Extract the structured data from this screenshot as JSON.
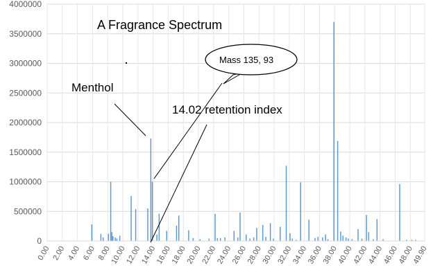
{
  "chart_data": {
    "type": "bar",
    "title": "A Fragrance Spectrum",
    "xlabel": "",
    "ylabel": "",
    "ylim": [
      0,
      4000000
    ],
    "xlim": [
      0,
      49.9
    ],
    "y_ticks": [
      "0",
      "500000",
      "1000000",
      "1500000",
      "2000000",
      "2500000",
      "3000000",
      "3500000",
      "4000000"
    ],
    "x_ticks": [
      "0.00",
      "2.00",
      "4.00",
      "6.00",
      "8.00",
      "10.00",
      "12.00",
      "14.00",
      "16.00",
      "18.00",
      "20.00",
      "22.00",
      "24.00",
      "26.00",
      "28.00",
      "30.00",
      "32.00",
      "34.00",
      "36.00",
      "38.00",
      "40.00",
      "42.00",
      "44.00",
      "46.00",
      "48.00",
      "49.90"
    ],
    "grid": true,
    "legend": "none",
    "color": "#5b9bd5",
    "x": [
      5.9,
      7.1,
      7.4,
      8.1,
      8.4,
      8.55,
      8.7,
      9.0,
      9.2,
      9.6,
      11.1,
      11.7,
      13.3,
      13.7,
      13.9,
      14.5,
      14.8,
      15.8,
      17.1,
      17.4,
      18.7,
      19.3,
      20.2,
      21.4,
      22.2,
      22.5,
      22.9,
      23.5,
      24.7,
      25.2,
      25.5,
      26.3,
      26.8,
      27.3,
      27.7,
      28.5,
      28.9,
      29.5,
      29.9,
      30.8,
      31.6,
      32.1,
      32.4,
      32.9,
      33.5,
      34.6,
      35.4,
      35.8,
      36.4,
      36.8,
      37.1,
      37.9,
      38.4,
      38.8,
      39.1,
      39.5,
      39.8,
      40.3,
      41.1,
      41.6,
      42.2,
      42.5,
      43.1,
      43.6,
      44.4,
      46.6,
      47.5,
      48.2,
      48.7
    ],
    "values": [
      280000,
      120000,
      60000,
      120000,
      1000000,
      150000,
      80000,
      60000,
      40000,
      90000,
      760000,
      540000,
      550000,
      1730000,
      1000000,
      110000,
      460000,
      170000,
      260000,
      430000,
      180000,
      50000,
      30000,
      40000,
      460000,
      50000,
      50000,
      60000,
      170000,
      60000,
      480000,
      110000,
      40000,
      60000,
      220000,
      270000,
      70000,
      300000,
      40000,
      240000,
      1270000,
      130000,
      40000,
      20000,
      990000,
      360000,
      50000,
      70000,
      60000,
      110000,
      30000,
      3700000,
      1690000,
      160000,
      90000,
      60000,
      40000,
      30000,
      200000,
      40000,
      440000,
      150000,
      30000,
      370000,
      30000,
      960000,
      20000,
      20000,
      20000
    ],
    "annotations": {
      "title_note": "A Fragrance Spectrum",
      "menthol": "Menthol",
      "retention": "14.02 retention index",
      "bubble": "Mass 135, 93"
    }
  }
}
